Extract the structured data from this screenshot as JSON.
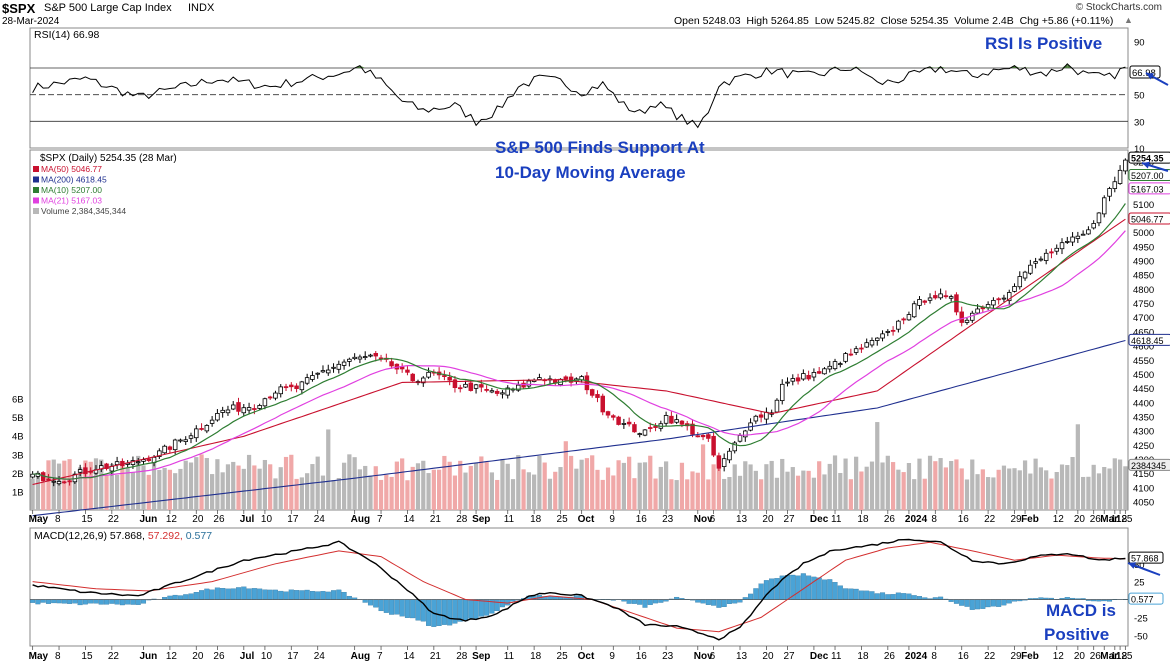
{
  "header": {
    "symbol": "$SPX",
    "name": "S&P 500 Large Cap Index",
    "exchange": "INDX",
    "date": "28-Mar-2024",
    "watermark": "© StockCharts.com",
    "ohlc": "Open 5248.03  High 5264.85  Low 5245.82  Close 5254.35  Volume 2.4B  Chg +5.86 (+0.11%)",
    "ohlc_arrow": "▲"
  },
  "annotations": {
    "rsi": "RSI Is Positive",
    "price_line1": "S&P 500 Finds Support At",
    "price_line2": "10-Day Moving Average",
    "macd_line1": "MACD is",
    "macd_line2": "Positive"
  },
  "colors": {
    "up": "#000000",
    "down": "#c8102e",
    "ma50": "#c8102e",
    "ma200": "#1f2f8f",
    "ma10": "#2e7d32",
    "ma21": "#e040e0",
    "vol_up": "#b8b8b8",
    "vol_down": "#f0a8a8",
    "macd_line": "#000000",
    "signal_line": "#d32f2f",
    "histogram": "#4aa3d6",
    "rsi_fill": "#4a7a3a",
    "annotation": "#1a3fbf"
  },
  "chart_data": [
    {
      "type": "line",
      "panel": "rsi",
      "title": "RSI(14) 66.98",
      "ylim": [
        10,
        100
      ],
      "yticks": [
        10,
        30,
        50,
        70,
        90
      ],
      "levels": [
        30,
        50,
        70
      ],
      "current_label": "66.98",
      "anchors": [
        [
          0,
          55
        ],
        [
          10,
          62
        ],
        [
          20,
          48
        ],
        [
          35,
          62
        ],
        [
          45,
          56
        ],
        [
          50,
          60
        ],
        [
          58,
          66
        ],
        [
          62,
          71
        ],
        [
          66,
          60
        ],
        [
          70,
          45
        ],
        [
          74,
          38
        ],
        [
          80,
          42
        ],
        [
          84,
          30
        ],
        [
          88,
          38
        ],
        [
          92,
          56
        ],
        [
          96,
          62
        ],
        [
          100,
          60
        ],
        [
          104,
          52
        ],
        [
          108,
          58
        ],
        [
          112,
          42
        ],
        [
          115,
          36
        ],
        [
          118,
          44
        ],
        [
          124,
          30
        ],
        [
          126,
          25
        ],
        [
          128,
          38
        ],
        [
          130,
          58
        ],
        [
          135,
          64
        ],
        [
          140,
          68
        ],
        [
          146,
          64
        ],
        [
          150,
          66
        ],
        [
          154,
          70
        ],
        [
          158,
          66
        ],
        [
          160,
          58
        ],
        [
          164,
          61
        ],
        [
          168,
          66
        ],
        [
          172,
          70
        ],
        [
          178,
          64
        ],
        [
          182,
          68
        ],
        [
          186,
          70
        ],
        [
          192,
          66
        ],
        [
          196,
          72
        ],
        [
          200,
          64
        ],
        [
          204,
          63
        ],
        [
          207,
          70
        ]
      ]
    },
    {
      "type": "bar",
      "panel": "price",
      "title": "$SPX (Daily) 5254.35 (28 Mar)",
      "ylim": [
        4020,
        5290
      ],
      "yticks": [
        4050,
        4100,
        4150,
        4200,
        4250,
        4300,
        4350,
        4400,
        4450,
        4500,
        4550,
        4600,
        4650,
        4700,
        4750,
        4800,
        4850,
        4900,
        4950,
        5000,
        5050,
        5100,
        5150,
        5200,
        5250
      ],
      "price_anchors": [
        [
          0,
          4140
        ],
        [
          6,
          4130
        ],
        [
          12,
          4170
        ],
        [
          18,
          4180
        ],
        [
          24,
          4220
        ],
        [
          30,
          4290
        ],
        [
          36,
          4370
        ],
        [
          42,
          4390
        ],
        [
          46,
          4440
        ],
        [
          50,
          4450
        ],
        [
          55,
          4510
        ],
        [
          60,
          4550
        ],
        [
          64,
          4560
        ],
        [
          68,
          4530
        ],
        [
          72,
          4480
        ],
        [
          76,
          4500
        ],
        [
          80,
          4460
        ],
        [
          84,
          4450
        ],
        [
          88,
          4430
        ],
        [
          92,
          4450
        ],
        [
          96,
          4490
        ],
        [
          100,
          4470
        ],
        [
          104,
          4480
        ],
        [
          108,
          4380
        ],
        [
          112,
          4320
        ],
        [
          116,
          4290
        ],
        [
          120,
          4350
        ],
        [
          124,
          4310
        ],
        [
          128,
          4260
        ],
        [
          130,
          4165
        ],
        [
          133,
          4250
        ],
        [
          136,
          4340
        ],
        [
          140,
          4370
        ],
        [
          142,
          4460
        ],
        [
          146,
          4490
        ],
        [
          150,
          4510
        ],
        [
          154,
          4560
        ],
        [
          158,
          4600
        ],
        [
          162,
          4640
        ],
        [
          166,
          4720
        ],
        [
          170,
          4780
        ],
        [
          174,
          4760
        ],
        [
          176,
          4690
        ],
        [
          180,
          4740
        ],
        [
          184,
          4780
        ],
        [
          188,
          4860
        ],
        [
          192,
          4920
        ],
        [
          196,
          4960
        ],
        [
          200,
          5000
        ],
        [
          202,
          5080
        ],
        [
          204,
          5150
        ],
        [
          205,
          5180
        ],
        [
          207,
          5254
        ]
      ],
      "volume_ylim": [
        0,
        7
      ],
      "volume_yticks": [
        1,
        2,
        3,
        4,
        5,
        6
      ],
      "volume_tick_labels": [
        "1B",
        "2B",
        "3B",
        "4B",
        "5B",
        "6B"
      ],
      "legend": [
        {
          "label": "MA(50) 5046.77",
          "color_key": "ma50"
        },
        {
          "label": "MA(200) 4618.45",
          "color_key": "ma200"
        },
        {
          "label": "MA(10) 5207.00",
          "color_key": "ma10"
        },
        {
          "label": "MA(21) 5167.03",
          "color_key": "ma21"
        },
        {
          "label": "Volume 2,384,345,344",
          "color_key": "vol_up"
        }
      ],
      "right_labels": [
        {
          "value": 5254.35,
          "text": "5254.35"
        },
        {
          "value": 5207.0,
          "text": "5207.00"
        },
        {
          "value": 5167.03,
          "text": "5167.03"
        },
        {
          "value": 5046.77,
          "text": "5046.77"
        },
        {
          "value": 4618.45,
          "text": "4618.45"
        }
      ],
      "volume_label": "2384345",
      "ma200_anchors": [
        [
          0,
          4000
        ],
        [
          60,
          4130
        ],
        [
          120,
          4270
        ],
        [
          160,
          4380
        ],
        [
          207,
          4618
        ]
      ],
      "ma50_anchors": [
        [
          0,
          4110
        ],
        [
          40,
          4280
        ],
        [
          70,
          4470
        ],
        [
          100,
          4480
        ],
        [
          120,
          4440
        ],
        [
          140,
          4360
        ],
        [
          160,
          4440
        ],
        [
          180,
          4700
        ],
        [
          207,
          5046
        ]
      ]
    },
    {
      "type": "line",
      "panel": "macd",
      "title": "MACD(12,26,9)",
      "title_values": [
        "57.868",
        "57.292",
        "0.577"
      ],
      "ylim": [
        -65,
        100
      ],
      "yticks": [
        -50,
        -25,
        0,
        25,
        50
      ],
      "right_labels": [
        "57.868",
        "0.577"
      ],
      "macd_anchors": [
        [
          0,
          20
        ],
        [
          10,
          10
        ],
        [
          20,
          5
        ],
        [
          30,
          30
        ],
        [
          40,
          55
        ],
        [
          50,
          68
        ],
        [
          58,
          80
        ],
        [
          64,
          55
        ],
        [
          70,
          20
        ],
        [
          76,
          -20
        ],
        [
          82,
          -30
        ],
        [
          88,
          -20
        ],
        [
          94,
          5
        ],
        [
          98,
          10
        ],
        [
          104,
          5
        ],
        [
          110,
          -10
        ],
        [
          116,
          -35
        ],
        [
          122,
          -38
        ],
        [
          128,
          -50
        ],
        [
          130,
          -55
        ],
        [
          134,
          -40
        ],
        [
          140,
          15
        ],
        [
          146,
          50
        ],
        [
          152,
          70
        ],
        [
          158,
          75
        ],
        [
          166,
          85
        ],
        [
          172,
          80
        ],
        [
          178,
          55
        ],
        [
          184,
          50
        ],
        [
          190,
          60
        ],
        [
          196,
          65
        ],
        [
          202,
          55
        ],
        [
          207,
          58
        ]
      ],
      "signal_anchors": [
        [
          0,
          25
        ],
        [
          12,
          15
        ],
        [
          22,
          12
        ],
        [
          34,
          25
        ],
        [
          46,
          50
        ],
        [
          58,
          68
        ],
        [
          66,
          60
        ],
        [
          74,
          25
        ],
        [
          82,
          0
        ],
        [
          90,
          -5
        ],
        [
          98,
          5
        ],
        [
          106,
          0
        ],
        [
          114,
          -20
        ],
        [
          122,
          -40
        ],
        [
          130,
          -45
        ],
        [
          138,
          -25
        ],
        [
          146,
          15
        ],
        [
          154,
          55
        ],
        [
          162,
          72
        ],
        [
          170,
          80
        ],
        [
          178,
          68
        ],
        [
          186,
          55
        ],
        [
          194,
          62
        ],
        [
          202,
          58
        ],
        [
          207,
          57
        ]
      ]
    }
  ],
  "x_axis": {
    "count": 208,
    "labels": [
      {
        "i": 0,
        "t": "May",
        "b": true
      },
      {
        "i": 5,
        "t": "8"
      },
      {
        "i": 10,
        "t": "15"
      },
      {
        "i": 15,
        "t": "22"
      },
      {
        "i": 21,
        "t": "Jun",
        "b": true
      },
      {
        "i": 26,
        "t": "12"
      },
      {
        "i": 31,
        "t": "20"
      },
      {
        "i": 35,
        "t": "26"
      },
      {
        "i": 40,
        "t": "Jul",
        "b": true
      },
      {
        "i": 44,
        "t": "10"
      },
      {
        "i": 49,
        "t": "17"
      },
      {
        "i": 54,
        "t": "24"
      },
      {
        "i": 61,
        "t": "Aug",
        "b": true
      },
      {
        "i": 66,
        "t": "7"
      },
      {
        "i": 71,
        "t": "14"
      },
      {
        "i": 76,
        "t": "21"
      },
      {
        "i": 81,
        "t": "28"
      },
      {
        "i": 84,
        "t": "Sep",
        "b": true
      },
      {
        "i": 90,
        "t": "11"
      },
      {
        "i": 95,
        "t": "18"
      },
      {
        "i": 100,
        "t": "25"
      },
      {
        "i": 104,
        "t": "Oct",
        "b": true
      },
      {
        "i": 110,
        "t": "9"
      },
      {
        "i": 115,
        "t": "16"
      },
      {
        "i": 120,
        "t": "23"
      },
      {
        "i": 126,
        "t": "Nov",
        "b": true
      },
      {
        "i": 129,
        "t": "6"
      },
      {
        "i": 134,
        "t": "13"
      },
      {
        "i": 139,
        "t": "20"
      },
      {
        "i": 143,
        "t": "27"
      },
      {
        "i": 148,
        "t": "Dec",
        "b": true
      },
      {
        "i": 152,
        "t": "11"
      },
      {
        "i": 157,
        "t": "18"
      },
      {
        "i": 162,
        "t": "26"
      },
      {
        "i": 166,
        "t": "2024",
        "b": true
      },
      {
        "i": 171,
        "t": "8"
      },
      {
        "i": 176,
        "t": "16"
      },
      {
        "i": 181,
        "t": "22"
      },
      {
        "i": 186,
        "t": "29"
      },
      {
        "i": 188,
        "t": "Feb",
        "b": true
      },
      {
        "i": 194,
        "t": "12"
      },
      {
        "i": 198,
        "t": "20"
      },
      {
        "i": 201,
        "t": "26"
      },
      {
        "i": 203,
        "t": "Mar",
        "b": true
      },
      {
        "i": 205,
        "t": "11"
      },
      {
        "i": 206,
        "t": "18"
      },
      {
        "i": 207,
        "t": "25"
      }
    ]
  }
}
